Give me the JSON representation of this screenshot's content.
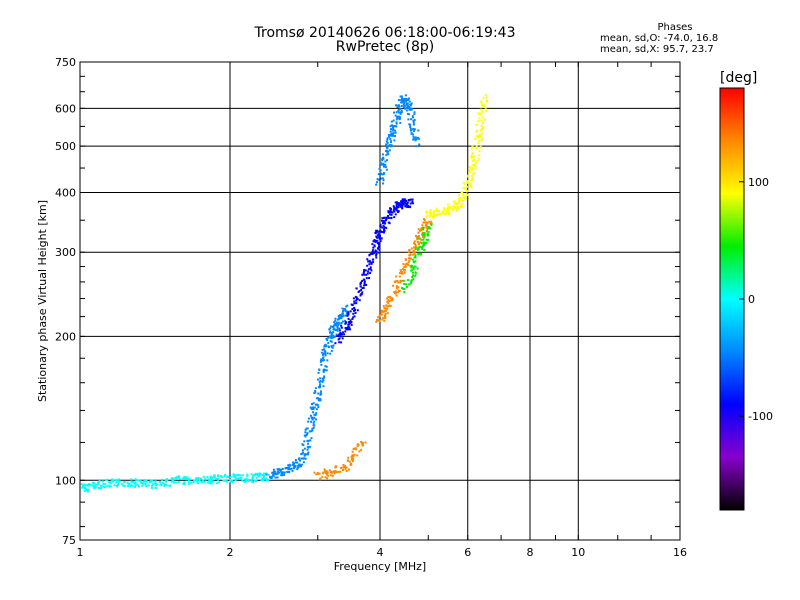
{
  "header": {
    "title_line1": "Tromsø 20140626 06:18:00-06:19:43",
    "title_line2": "RwPretec (8p)"
  },
  "phase_box": {
    "heading": "Phases",
    "line1": "mean, sd,O: -74.0, 16.8",
    "line2": "mean, sd,X:  95.7, 23.7"
  },
  "colorbar": {
    "unit": "[deg]",
    "range": [
      -180,
      180
    ],
    "ticks": [
      "100",
      "0",
      "-100"
    ],
    "tick_values": [
      100,
      0,
      -100
    ],
    "gradient": [
      "#ff0000",
      "#ff8800",
      "#ffff00",
      "#00ee00",
      "#00ffff",
      "#0088ff",
      "#0000ff",
      "#8800cc",
      "#000000"
    ]
  },
  "chart_data": {
    "type": "scatter",
    "title": "Tromsø 20140626 06:18:00-06:19:43",
    "subtitle": "RwPretec (8p)",
    "xlabel": "Frequency [MHz]",
    "ylabel": "Stationary phase Virtual Height [km]",
    "x_scale": "log",
    "y_scale": "log",
    "xlim": [
      1,
      16
    ],
    "ylim": [
      75,
      750
    ],
    "x_ticks": [
      1,
      2,
      4,
      6,
      8,
      10,
      16
    ],
    "x_tick_labels": [
      "1",
      "2",
      "4",
      "6",
      "8",
      "10",
      "16"
    ],
    "y_ticks": [
      75,
      100,
      200,
      300,
      400,
      500,
      600,
      750
    ],
    "y_tick_labels": [
      "75",
      "100",
      "200",
      "300",
      "400",
      "500",
      "600",
      "750"
    ],
    "grid": true,
    "color_dimension": "phase [deg]",
    "traces": [
      {
        "x": [
          1.0,
          1.1,
          1.25,
          1.4,
          1.6,
          1.8,
          2.0,
          2.2,
          2.4
        ],
        "y": [
          96,
          98,
          99,
          98,
          100,
          100,
          101,
          101,
          102
        ],
        "phase": -20
      },
      {
        "x": [
          2.4,
          2.6,
          2.8,
          2.9,
          3.0,
          3.1,
          3.2,
          3.3,
          3.45
        ],
        "y": [
          102,
          105,
          110,
          130,
          150,
          180,
          200,
          215,
          230
        ],
        "phase": -60
      },
      {
        "x": [
          3.3,
          3.5,
          3.7,
          3.9,
          4.0,
          4.2,
          4.4,
          4.6
        ],
        "y": [
          195,
          220,
          260,
          300,
          330,
          360,
          380,
          380
        ],
        "phase": -80
      },
      {
        "x": [
          4.0,
          4.15,
          4.3,
          4.45,
          4.6,
          4.75
        ],
        "y": [
          420,
          500,
          560,
          630,
          600,
          500
        ],
        "phase": -50
      },
      {
        "x": [
          3.0,
          3.4,
          3.7
        ],
        "y": [
          102,
          106,
          120
        ],
        "phase": 120
      },
      {
        "x": [
          4.0,
          4.2,
          4.5,
          4.8,
          5.0
        ],
        "y": [
          215,
          240,
          280,
          320,
          350
        ],
        "phase": 150
      },
      {
        "x": [
          4.5,
          4.8,
          5.0
        ],
        "y": [
          250,
          300,
          340
        ],
        "phase": 40
      },
      {
        "x": [
          5.0,
          5.4,
          5.8,
          6.1,
          6.3,
          6.5
        ],
        "y": [
          360,
          365,
          380,
          430,
          520,
          640
        ],
        "phase": 100
      }
    ]
  }
}
